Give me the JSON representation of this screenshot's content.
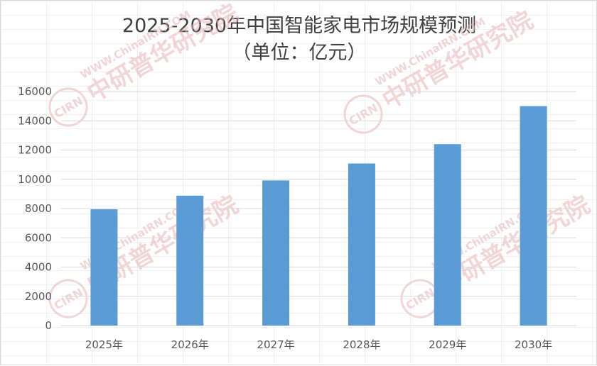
{
  "chart_data": {
    "type": "bar",
    "title": "2025-2030年中国智能家电市场规模预测",
    "subtitle": "（单位：亿元）",
    "categories": [
      "2025年",
      "2026年",
      "2027年",
      "2028年",
      "2029年",
      "2030年"
    ],
    "series": [
      {
        "values": [
          7950,
          8880,
          9920,
          11080,
          12400,
          15000
        ]
      }
    ],
    "ylim": [
      0,
      16000
    ],
    "yticks": [
      0,
      2000,
      4000,
      6000,
      8000,
      10000,
      12000,
      14000,
      16000
    ],
    "grid": true,
    "legend": "none",
    "bar_color": "#5b9bd5"
  },
  "watermark": {
    "badge": "CIRN",
    "org": "中研普华研究院",
    "url": "WWW.ChinaIRN.COM",
    "color": "#e8b4b4"
  }
}
